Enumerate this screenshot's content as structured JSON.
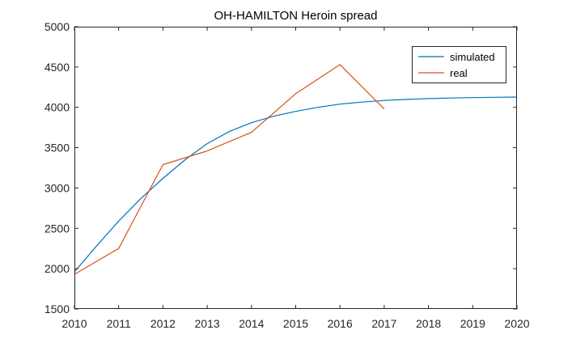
{
  "chart_data": {
    "type": "line",
    "title": "OH-HAMILTON Heroin spread",
    "xlabel": "",
    "ylabel": "",
    "xlim": [
      2010,
      2020
    ],
    "ylim": [
      1500,
      5000
    ],
    "xticks": [
      "2010",
      "2011",
      "2012",
      "2013",
      "2014",
      "2015",
      "2016",
      "2017",
      "2018",
      "2019",
      "2020"
    ],
    "yticks": [
      "1500",
      "2000",
      "2500",
      "3000",
      "3500",
      "4000",
      "4500",
      "5000"
    ],
    "grid": false,
    "legend_position": "top-right",
    "series": [
      {
        "name": "simulated",
        "color": "#0072BD",
        "x": [
          2010,
          2010.5,
          2011,
          2011.5,
          2012,
          2012.5,
          2013,
          2013.5,
          2014,
          2014.5,
          2015,
          2015.5,
          2016,
          2016.5,
          2017,
          2017.5,
          2018,
          2018.5,
          2019,
          2019.5,
          2020
        ],
        "values": [
          1960,
          2280,
          2590,
          2870,
          3120,
          3350,
          3550,
          3700,
          3810,
          3890,
          3950,
          4000,
          4040,
          4065,
          4085,
          4098,
          4108,
          4115,
          4120,
          4124,
          4128
        ]
      },
      {
        "name": "real",
        "color": "#D95319",
        "x": [
          2010,
          2011,
          2012,
          2013,
          2014,
          2015,
          2016,
          2017
        ],
        "values": [
          1930,
          2250,
          3290,
          3460,
          3690,
          4170,
          4530,
          3980
        ]
      }
    ]
  }
}
